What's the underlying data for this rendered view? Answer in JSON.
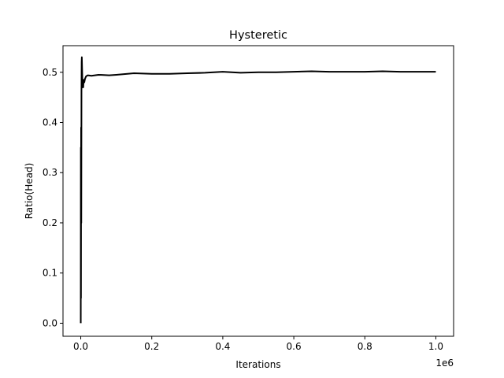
{
  "chart_data": {
    "type": "line",
    "title": "Hysteretic",
    "xlabel": "Iterations",
    "ylabel": "Ratio(Head)",
    "x_offset_label": "1e6",
    "xlim": [
      -0.05,
      1.05
    ],
    "ylim": [
      -0.026,
      0.553
    ],
    "x_ticks": [
      0.0,
      0.2,
      0.4,
      0.6,
      0.8,
      1.0
    ],
    "x_tick_labels": [
      "0.0",
      "0.2",
      "0.4",
      "0.6",
      "0.8",
      "1.0"
    ],
    "y_ticks": [
      0.0,
      0.1,
      0.2,
      0.3,
      0.4,
      0.5
    ],
    "y_tick_labels": [
      "0.0",
      "0.1",
      "0.2",
      "0.3",
      "0.4",
      "0.5"
    ],
    "grid": false,
    "line_color": "#000000",
    "series": [
      {
        "x": [
          0.0,
          0.0003,
          0.0006,
          0.001,
          0.0015,
          0.002,
          0.0025,
          0.003,
          0.004,
          0.005,
          0.006,
          0.007,
          0.008,
          0.01,
          0.012,
          0.015,
          0.02,
          0.03,
          0.05,
          0.08,
          0.1,
          0.15,
          0.2,
          0.25,
          0.3,
          0.35,
          0.4,
          0.45,
          0.5,
          0.55,
          0.6,
          0.65,
          0.7,
          0.75,
          0.8,
          0.85,
          0.9,
          0.95,
          1.0
        ],
        "y": [
          0.0,
          0.35,
          0.05,
          0.39,
          0.2,
          0.46,
          0.52,
          0.53,
          0.5,
          0.47,
          0.48,
          0.47,
          0.485,
          0.48,
          0.487,
          0.492,
          0.494,
          0.493,
          0.495,
          0.494,
          0.495,
          0.498,
          0.497,
          0.497,
          0.498,
          0.499,
          0.501,
          0.499,
          0.5,
          0.5,
          0.501,
          0.502,
          0.501,
          0.501,
          0.501,
          0.502,
          0.501,
          0.501,
          0.501
        ]
      }
    ]
  }
}
